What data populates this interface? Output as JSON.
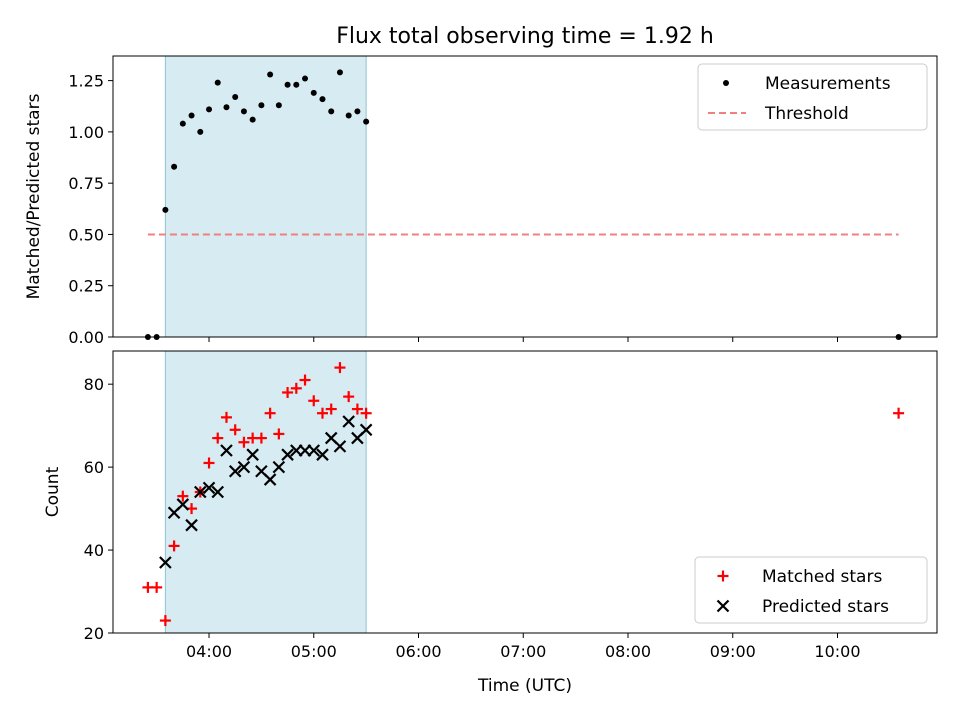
{
  "chart_data": [
    {
      "type": "scatter",
      "title": "Flux total observing time = 1.92 h",
      "xlabel": "",
      "ylabel": "Matched/Predicted stars",
      "ylim": [
        0,
        1.37
      ],
      "xlim": [
        "03:05",
        "10:57"
      ],
      "yticks": [
        "0.00",
        "0.25",
        "0.50",
        "0.75",
        "1.00",
        "1.25"
      ],
      "shaded_interval": [
        "03:35",
        "05:30"
      ],
      "shade_color": "#add8e6",
      "legend_position": "upper right",
      "grid": false,
      "series": [
        {
          "name": "Measurements",
          "marker": "dot",
          "color": "#000000",
          "x": [
            "03:25",
            "03:30",
            "03:35",
            "03:40",
            "03:45",
            "03:50",
            "03:55",
            "04:00",
            "04:05",
            "04:10",
            "04:15",
            "04:20",
            "04:25",
            "04:30",
            "04:35",
            "04:40",
            "04:45",
            "04:50",
            "04:55",
            "05:00",
            "05:05",
            "05:10",
            "05:15",
            "05:20",
            "05:25",
            "05:30",
            "10:35"
          ],
          "y": [
            0.0,
            0.0,
            0.62,
            0.83,
            1.04,
            1.08,
            1.0,
            1.11,
            1.24,
            1.12,
            1.17,
            1.1,
            1.06,
            1.13,
            1.28,
            1.13,
            1.23,
            1.23,
            1.26,
            1.19,
            1.16,
            1.1,
            1.29,
            1.08,
            1.1,
            1.05,
            0.0
          ]
        },
        {
          "name": "Threshold",
          "marker": "dashed-line",
          "color": "#f08080",
          "x": [
            "03:25",
            "10:35"
          ],
          "y": [
            0.5,
            0.5
          ]
        }
      ]
    },
    {
      "type": "scatter",
      "title": "",
      "xlabel": "Time (UTC)",
      "ylabel": "Count",
      "ylim": [
        20,
        88
      ],
      "xlim": [
        "03:05",
        "10:57"
      ],
      "yticks": [
        "20",
        "40",
        "60",
        "80"
      ],
      "xticks": [
        "04:00",
        "05:00",
        "06:00",
        "07:00",
        "08:00",
        "09:00",
        "10:00"
      ],
      "shaded_interval": [
        "03:35",
        "05:30"
      ],
      "shade_color": "#add8e6",
      "legend_position": "lower right",
      "grid": false,
      "series": [
        {
          "name": "Matched stars",
          "marker": "plus",
          "color": "#ff0000",
          "x": [
            "03:25",
            "03:30",
            "03:35",
            "03:40",
            "03:45",
            "03:50",
            "03:55",
            "04:00",
            "04:05",
            "04:10",
            "04:15",
            "04:20",
            "04:25",
            "04:30",
            "04:35",
            "04:40",
            "04:45",
            "04:50",
            "04:55",
            "05:00",
            "05:05",
            "05:10",
            "05:15",
            "05:20",
            "05:25",
            "05:30",
            "10:35"
          ],
          "y": [
            31,
            31,
            23,
            41,
            53,
            50,
            54,
            61,
            67,
            72,
            69,
            66,
            67,
            67,
            73,
            68,
            78,
            79,
            81,
            76,
            73,
            74,
            84,
            77,
            74,
            73,
            73
          ]
        },
        {
          "name": "Predicted stars",
          "marker": "x",
          "color": "#000000",
          "x": [
            "03:35",
            "03:40",
            "03:45",
            "03:50",
            "03:55",
            "04:00",
            "04:05",
            "04:10",
            "04:15",
            "04:20",
            "04:25",
            "04:30",
            "04:35",
            "04:40",
            "04:45",
            "04:50",
            "04:55",
            "05:00",
            "05:05",
            "05:10",
            "05:15",
            "05:20",
            "05:25",
            "05:30"
          ],
          "y": [
            37,
            49,
            51,
            46,
            54,
            55,
            54,
            64,
            59,
            60,
            63,
            59,
            57,
            60,
            63,
            64,
            64,
            64,
            63,
            67,
            65,
            71,
            67,
            69
          ]
        }
      ]
    }
  ]
}
